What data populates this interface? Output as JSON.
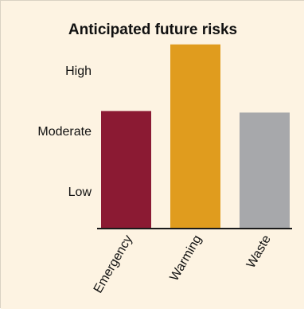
{
  "colors": {
    "background": "#fdf3e2",
    "axis": "#1a1a1a",
    "text": "#111111"
  },
  "chart_data": {
    "type": "bar",
    "title": "Anticipated future risks",
    "categories": [
      "Emergency",
      "Warming",
      "Waste"
    ],
    "values": [
      1.5,
      2.35,
      1.48
    ],
    "colors": [
      "#8b1a33",
      "#e09c1e",
      "#a7a8ab"
    ],
    "yaxis": {
      "ticks": [
        {
          "label": "Low",
          "value": 0.5
        },
        {
          "label": "Moderate",
          "value": 1.5
        },
        {
          "label": "High",
          "value": 2.5
        }
      ],
      "ylim": [
        0,
        2.5
      ]
    },
    "grid": false,
    "legend": "none"
  }
}
